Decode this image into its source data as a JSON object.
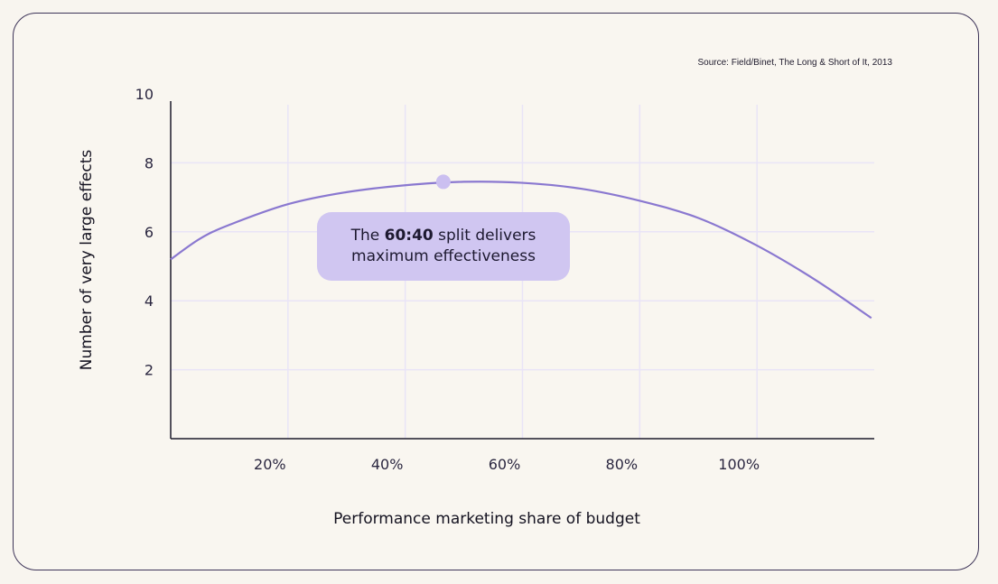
{
  "source": "Source: Field/Binet, The Long & Short of It, 2013",
  "callout": {
    "prefix": "The ",
    "highlight": "60:40",
    "line1_suffix": " split delivers",
    "line2": "maximum effectiveness"
  },
  "colors": {
    "curve": "#8a78d0",
    "marker": "#cbbff0",
    "grid": "#e9e4f7",
    "axis": "#1c1a2a",
    "callout_bg": "#d0c6f1"
  },
  "chart_data": {
    "type": "line",
    "title": "",
    "xlabel": "Performance marketing share of budget",
    "ylabel": "Number of very large effects",
    "xlim": [
      0,
      120
    ],
    "ylim": [
      0,
      10
    ],
    "x_ticks": [
      {
        "value": 20,
        "label": "20%"
      },
      {
        "value": 40,
        "label": "40%"
      },
      {
        "value": 60,
        "label": "60%"
      },
      {
        "value": 80,
        "label": "80%"
      },
      {
        "value": 100,
        "label": "100%"
      }
    ],
    "y_ticks": [
      {
        "value": 2,
        "label": "2"
      },
      {
        "value": 4,
        "label": "4"
      },
      {
        "value": 6,
        "label": "6"
      },
      {
        "value": 8,
        "label": "8"
      },
      {
        "value": 10,
        "label": "10"
      }
    ],
    "grid": true,
    "series": [
      {
        "x": [
          0,
          5,
          10,
          20,
          30,
          40,
          50,
          60,
          70,
          80,
          90,
          100,
          110,
          119.5
        ],
        "y": [
          5.2,
          5.8,
          6.2,
          6.8,
          7.15,
          7.35,
          7.45,
          7.42,
          7.25,
          6.9,
          6.4,
          5.6,
          4.6,
          3.5
        ]
      }
    ],
    "highlight_point": {
      "x": 46.5,
      "y": 7.45
    }
  }
}
